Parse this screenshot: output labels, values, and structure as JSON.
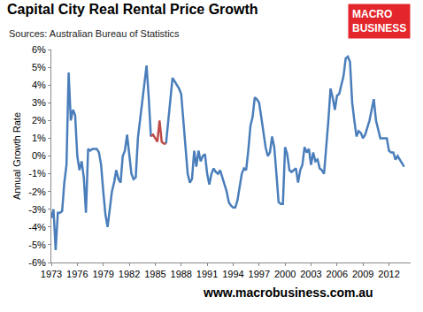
{
  "chart_data": {
    "type": "line",
    "title": "Capital City Real Rental Price Growth",
    "subtitle": "Sources: Australian Bureau of Statistics",
    "logo": [
      "MACRO",
      "BUSINESS"
    ],
    "footer": "www.macrobusiness.com.au",
    "y_label": "Annual Growth Rate",
    "grid": false,
    "xlim": [
      1973,
      2014.5
    ],
    "xticks": [
      1973,
      1976,
      1979,
      1982,
      1985,
      1988,
      1991,
      1994,
      1997,
      2000,
      2003,
      2006,
      2009,
      2012
    ],
    "ylim": [
      -6,
      6
    ],
    "yticks": [
      {
        "value": -6,
        "label": "-6%"
      },
      {
        "value": -5,
        "label": "-5%"
      },
      {
        "value": -4,
        "label": "-4%"
      },
      {
        "value": -3,
        "label": "-3%"
      },
      {
        "value": -2,
        "label": "-2%"
      },
      {
        "value": -1,
        "label": "-1%"
      },
      {
        "value": 0,
        "label": "0%"
      },
      {
        "value": 1,
        "label": "1%"
      },
      {
        "value": 2,
        "label": "2%"
      },
      {
        "value": 3,
        "label": "3%"
      },
      {
        "value": 4,
        "label": "4%"
      },
      {
        "value": 5,
        "label": "5%"
      },
      {
        "value": 6,
        "label": "6%"
      }
    ],
    "series": [
      {
        "color": "#4a7ebb",
        "line_style": "solid",
        "x": [
          1973,
          1973.25,
          1973.5,
          1973.75,
          1974,
          1974.25,
          1974.5,
          1974.75,
          1975,
          1975.25,
          1975.5,
          1975.75,
          1976,
          1976.25,
          1976.5,
          1976.75,
          1977,
          1977.25,
          1977.5,
          1977.75,
          1978,
          1978.25,
          1978.5,
          1978.75,
          1979,
          1979.25,
          1979.5,
          1979.75,
          1980,
          1980.25,
          1980.5,
          1980.75,
          1981,
          1981.25,
          1981.5,
          1981.75,
          1982,
          1982.25,
          1982.5,
          1982.75,
          1983,
          1983.25,
          1983.5,
          1983.75,
          1984,
          1984.25,
          1984.5,
          1984.75,
          1985,
          1985.25,
          1985.5,
          1985.75,
          1986,
          1986.25,
          1986.5,
          1986.75,
          1987,
          1987.25,
          1987.5,
          1987.75,
          1988,
          1988.25,
          1988.5,
          1988.75,
          1989,
          1989.25,
          1989.5,
          1989.75,
          1990,
          1990.25,
          1990.5,
          1990.75,
          1991,
          1991.25,
          1991.5,
          1991.75,
          1992,
          1992.25,
          1992.5,
          1992.75,
          1993,
          1993.25,
          1993.5,
          1993.75,
          1994,
          1994.25,
          1994.5,
          1994.75,
          1995,
          1995.25,
          1995.5,
          1995.75,
          1996,
          1996.25,
          1996.5,
          1996.75,
          1997,
          1997.25,
          1997.5,
          1997.75,
          1998,
          1998.25,
          1998.5,
          1998.75,
          1999,
          1999.25,
          1999.5,
          1999.75,
          2000,
          2000.25,
          2000.5,
          2000.75,
          2001,
          2001.25,
          2001.5,
          2001.75,
          2002,
          2002.25,
          2002.5,
          2002.75,
          2003,
          2003.25,
          2003.5,
          2003.75,
          2004,
          2004.25,
          2004.5,
          2004.75,
          2005,
          2005.25,
          2005.5,
          2005.75,
          2006,
          2006.25,
          2006.5,
          2006.75,
          2007,
          2007.25,
          2007.5,
          2007.75,
          2008,
          2008.25,
          2008.5,
          2008.75,
          2009,
          2009.25,
          2009.5,
          2009.75,
          2010,
          2010.25,
          2010.5,
          2010.75,
          2011,
          2011.25,
          2011.5,
          2011.75,
          2012,
          2012.25,
          2012.5,
          2012.75,
          2013,
          2013.25,
          2013.5,
          2013.75
        ],
        "values": [
          -3.5,
          -3.0,
          -5.3,
          -3.2,
          -3.2,
          -3.1,
          -1.5,
          -0.5,
          4.7,
          2.0,
          2.6,
          2.3,
          0.0,
          -0.8,
          -0.3,
          -1.2,
          -3.2,
          0.4,
          0.3,
          0.4,
          0.4,
          0.4,
          0.2,
          -0.5,
          -2.0,
          -3.3,
          -4.0,
          -3.0,
          -2.0,
          -1.5,
          -0.8,
          -1.3,
          -1.5,
          0.0,
          0.3,
          1.2,
          0.0,
          -1.0,
          -1.3,
          -1.2,
          1.0,
          2.0,
          3.0,
          3.8,
          5.1,
          3.3,
          1.1,
          null,
          null,
          null,
          null,
          null,
          null,
          0.7,
          2.0,
          3.0,
          4.4,
          4.2,
          4.0,
          3.8,
          3.5,
          2.0,
          0.5,
          -1.0,
          -1.5,
          -1.3,
          0.3,
          -0.6,
          0.3,
          -0.3,
          0.0,
          0.1,
          -1.0,
          -1.6,
          -1.0,
          -0.7,
          -0.9,
          -1.0,
          -0.8,
          -1.2,
          -1.5,
          -2.0,
          -2.6,
          -2.8,
          -2.9,
          -2.9,
          -2.5,
          -1.8,
          -1.0,
          -0.7,
          -0.8,
          0.3,
          1.7,
          2.2,
          3.3,
          3.2,
          3.0,
          2.2,
          1.2,
          0.5,
          0.0,
          0.2,
          1.1,
          0.5,
          -1.0,
          -2.6,
          -2.7,
          -2.7,
          0.5,
          0.1,
          -0.8,
          -0.9,
          -0.8,
          -0.7,
          -1.5,
          -0.8,
          -0.5,
          0.5,
          0.2,
          0.4,
          -0.5,
          0.2,
          -0.3,
          -0.2,
          -0.7,
          -0.8,
          -1.0,
          0.3,
          2.0,
          3.8,
          3.3,
          2.6,
          3.4,
          3.5,
          4.0,
          4.5,
          5.5,
          5.6,
          5.3,
          3.0,
          2.0,
          1.1,
          1.4,
          1.3,
          1.0,
          1.2,
          1.6,
          2.0,
          2.6,
          3.2,
          2.0,
          1.5,
          1.0,
          1.0,
          1.0,
          1.0,
          0.3,
          0.2,
          0.2,
          -0.2,
          0.0,
          -0.2,
          -0.4,
          -0.6
        ]
      },
      {
        "color": "#be4b48",
        "line_style": "solid",
        "x": [
          1984.5,
          1984.75,
          1985,
          1985.25,
          1985.5,
          1985.75,
          1986,
          1986.25
        ],
        "values": [
          1.1,
          1.2,
          1.0,
          0.8,
          2.0,
          0.8,
          0.7,
          0.7
        ]
      }
    ]
  }
}
